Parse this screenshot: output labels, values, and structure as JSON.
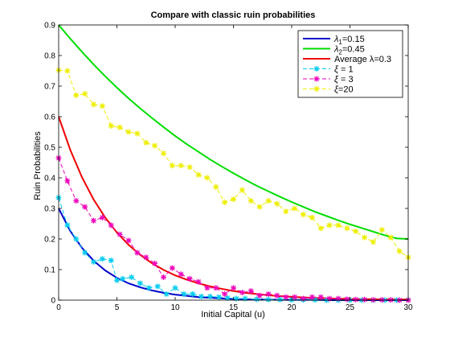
{
  "chart_data": {
    "type": "line",
    "title": "Compare with classic ruin probabilities",
    "xlabel": "Initial Capital (u)",
    "ylabel": "Ruin Probabilities",
    "xlim": [
      0,
      30
    ],
    "ylim": [
      0,
      0.9
    ],
    "xticks": [
      0,
      5,
      10,
      15,
      20,
      25,
      30
    ],
    "xtick_labels": [
      "0",
      "5",
      "10",
      "15",
      "20",
      "25",
      "30"
    ],
    "yticks": [
      0,
      0.1,
      0.2,
      0.3,
      0.4,
      0.5,
      0.6,
      0.7,
      0.8,
      0.9
    ],
    "ytick_labels": [
      "0",
      "0.1",
      "0.2",
      "0.3",
      "0.4",
      "0.5",
      "0.6",
      "0.7",
      "0.8",
      "0.9"
    ],
    "grid": false,
    "legend_position": "top-right",
    "series": [
      {
        "name": "λ1=0.15",
        "legend_parts": [
          "λ",
          "1",
          "=0.15"
        ],
        "color": "#0000cc",
        "style": "solid",
        "marker": "none",
        "x": [
          0,
          1,
          2,
          3,
          4,
          5,
          6,
          7,
          8,
          9,
          10,
          11,
          12,
          13,
          14,
          15,
          16,
          17,
          18,
          19,
          20,
          21,
          22,
          23,
          24,
          25,
          26,
          27,
          28,
          29,
          30
        ],
        "y": [
          0.3,
          0.226,
          0.171,
          0.129,
          0.097,
          0.073,
          0.055,
          0.042,
          0.032,
          0.024,
          0.018,
          0.014,
          0.01,
          0.008,
          0.006,
          0.004,
          0.003,
          0.002,
          0.002,
          0.001,
          0.001,
          0.001,
          0.001,
          0,
          0,
          0,
          0,
          0,
          0,
          0,
          0
        ]
      },
      {
        "name": "λ2=0.45",
        "legend_parts": [
          "λ",
          "2",
          "=0.45"
        ],
        "color": "#00dd00",
        "style": "solid",
        "marker": "none",
        "x": [
          0,
          1,
          2,
          3,
          4,
          5,
          6,
          7,
          8,
          9,
          10,
          11,
          12,
          13,
          14,
          15,
          16,
          17,
          18,
          19,
          20,
          21,
          22,
          23,
          24,
          25,
          26,
          27,
          28,
          29,
          30
        ],
        "y": [
          0.9,
          0.855,
          0.812,
          0.771,
          0.732,
          0.695,
          0.66,
          0.627,
          0.596,
          0.566,
          0.537,
          0.51,
          0.485,
          0.46,
          0.437,
          0.415,
          0.394,
          0.374,
          0.356,
          0.338,
          0.321,
          0.305,
          0.289,
          0.275,
          0.261,
          0.248,
          0.236,
          0.224,
          0.212,
          0.202,
          0.2
        ]
      },
      {
        "name": "Average λ=0.3",
        "color": "#ee0000",
        "style": "solid",
        "marker": "none",
        "x": [
          0,
          1,
          2,
          3,
          4,
          5,
          6,
          7,
          8,
          9,
          10,
          11,
          12,
          13,
          14,
          15,
          16,
          17,
          18,
          19,
          20,
          21,
          22,
          23,
          24,
          25,
          26,
          27,
          28,
          29,
          30
        ],
        "y": [
          0.6,
          0.491,
          0.402,
          0.329,
          0.27,
          0.221,
          0.181,
          0.148,
          0.121,
          0.099,
          0.081,
          0.067,
          0.055,
          0.045,
          0.037,
          0.03,
          0.024,
          0.02,
          0.016,
          0.013,
          0.011,
          0.009,
          0.007,
          0.006,
          0.005,
          0.004,
          0.003,
          0.003,
          0.002,
          0.002,
          0.002
        ]
      },
      {
        "name": "ξ = 1",
        "legend_parts": [
          "ξ",
          " = 1"
        ],
        "color": "#00ccee",
        "style": "dashed",
        "marker": "asterisk",
        "x": [
          0,
          0.75,
          1.5,
          2.25,
          3,
          3.75,
          4.5,
          5,
          5.5,
          6.25,
          7,
          7.75,
          8.5,
          9.25,
          10,
          10.75,
          11.5,
          12.25,
          13,
          13.75,
          14.5,
          15.25,
          16,
          17,
          18,
          19,
          20,
          21,
          22,
          23,
          24,
          25,
          26,
          27,
          28,
          29,
          30
        ],
        "y": [
          0.335,
          0.245,
          0.2,
          0.155,
          0.125,
          0.135,
          0.13,
          0.065,
          0.07,
          0.075,
          0.055,
          0.04,
          0.045,
          0.02,
          0.04,
          0.02,
          0.02,
          0.012,
          0.012,
          0.01,
          0.007,
          0.005,
          0.005,
          0.003,
          0.002,
          0.002,
          0.001,
          0.001,
          0.001,
          0,
          0,
          0,
          0,
          0,
          0,
          0,
          0
        ]
      },
      {
        "name": "ξ = 3",
        "legend_parts": [
          "ξ",
          " = 3"
        ],
        "color": "#ee00bb",
        "style": "dashed",
        "marker": "asterisk",
        "x": [
          0,
          0.75,
          1.5,
          2.25,
          3,
          3.75,
          4.5,
          5.25,
          6,
          6.75,
          7.5,
          8.25,
          9,
          9.75,
          10.5,
          11.25,
          12,
          12.75,
          13.5,
          14.25,
          15,
          15.75,
          16.5,
          17.25,
          18,
          18.75,
          19.5,
          20.25,
          21,
          21.75,
          22.5,
          23.25,
          24,
          24.75,
          25.5,
          26.25,
          27,
          27.75,
          28.5,
          29.25,
          30
        ],
        "y": [
          0.465,
          0.39,
          0.325,
          0.305,
          0.26,
          0.27,
          0.245,
          0.215,
          0.195,
          0.155,
          0.14,
          0.12,
          0.075,
          0.105,
          0.085,
          0.07,
          0.06,
          0.04,
          0.04,
          0.02,
          0.04,
          0.025,
          0.03,
          0.015,
          0.02,
          0.015,
          0.01,
          0.01,
          0.005,
          0.01,
          0.01,
          0.005,
          0.005,
          0.003,
          0.002,
          0.002,
          0.001,
          0.001,
          0.001,
          0,
          0
        ]
      },
      {
        "name": "ξ=20",
        "legend_parts": [
          "ξ",
          "=20"
        ],
        "color": "#eeee00",
        "style": "dashed",
        "marker": "asterisk",
        "x": [
          0,
          0.75,
          1.5,
          2.25,
          3,
          3.75,
          4.5,
          5.25,
          6,
          6.75,
          7.5,
          8.25,
          9,
          9.75,
          10.5,
          11.25,
          12,
          12.75,
          13.5,
          14.25,
          15,
          15.75,
          16.5,
          17.25,
          18,
          18.75,
          19.5,
          20.25,
          21,
          21.75,
          22.5,
          23.25,
          24,
          24.75,
          25.5,
          26.25,
          27,
          27.75,
          28.5,
          29.25,
          30
        ],
        "y": [
          0.752,
          0.75,
          0.67,
          0.675,
          0.64,
          0.635,
          0.57,
          0.565,
          0.55,
          0.545,
          0.515,
          0.505,
          0.48,
          0.44,
          0.44,
          0.435,
          0.41,
          0.4,
          0.37,
          0.32,
          0.33,
          0.36,
          0.325,
          0.305,
          0.325,
          0.315,
          0.29,
          0.3,
          0.28,
          0.27,
          0.235,
          0.245,
          0.245,
          0.235,
          0.225,
          0.205,
          0.19,
          0.23,
          0.205,
          0.16,
          0.14
        ]
      }
    ]
  }
}
